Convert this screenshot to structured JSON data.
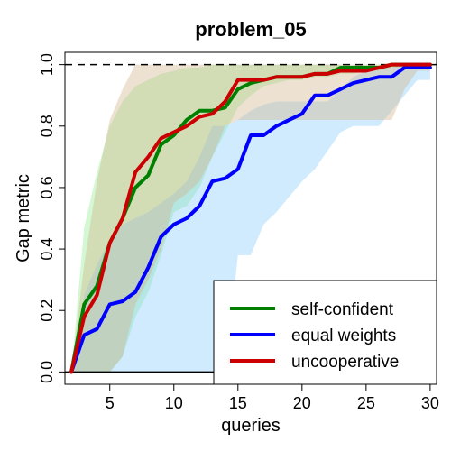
{
  "chart_data": {
    "type": "line",
    "title": "problem_05",
    "xlabel": "queries",
    "ylabel": "Gap metric",
    "xlim": [
      1.5,
      30.5
    ],
    "ylim": [
      -0.04,
      1.04
    ],
    "xticks": [
      5,
      10,
      15,
      20,
      25,
      30
    ],
    "yticks": [
      0.0,
      0.2,
      0.4,
      0.6,
      0.8,
      1.0
    ],
    "ytick_labels": [
      "0.0",
      "0.2",
      "0.4",
      "0.6",
      "0.8",
      "1.0"
    ],
    "reference_lines": [
      {
        "y": 1.0,
        "style": "dashed",
        "color": "#000000"
      },
      {
        "y": 0.0,
        "style": "solid",
        "color": "#000000"
      }
    ],
    "legend": {
      "position": "bottom-right"
    },
    "x": [
      2,
      3,
      4,
      5,
      6,
      7,
      8,
      9,
      10,
      11,
      12,
      13,
      14,
      15,
      16,
      17,
      18,
      19,
      20,
      21,
      22,
      23,
      24,
      25,
      26,
      27,
      28,
      29,
      30
    ],
    "series": [
      {
        "name": "self-confident",
        "color": "#008000",
        "band_color": "#90ee90",
        "values": [
          0.0,
          0.22,
          0.28,
          0.42,
          0.5,
          0.6,
          0.64,
          0.74,
          0.77,
          0.82,
          0.85,
          0.85,
          0.86,
          0.92,
          0.94,
          0.95,
          0.96,
          0.96,
          0.96,
          0.97,
          0.97,
          0.99,
          0.99,
          0.99,
          0.99,
          1.0,
          1.0,
          1.0,
          1.0
        ],
        "lower": [
          0.0,
          0.0,
          0.0,
          0.0,
          0.05,
          0.18,
          0.26,
          0.38,
          0.52,
          0.54,
          0.6,
          0.7,
          0.78,
          0.86,
          0.9,
          0.93,
          0.94,
          0.95,
          0.95,
          0.96,
          0.96,
          0.97,
          0.97,
          0.98,
          0.98,
          0.99,
          0.99,
          0.99,
          0.99
        ],
        "upper": [
          0.0,
          0.47,
          0.65,
          0.8,
          0.88,
          0.93,
          0.95,
          0.97,
          0.98,
          0.99,
          0.99,
          1.0,
          1.0,
          1.0,
          1.0,
          1.0,
          1.0,
          1.0,
          1.0,
          1.0,
          1.0,
          1.0,
          1.0,
          1.0,
          1.0,
          1.0,
          1.0,
          1.0,
          1.0
        ]
      },
      {
        "name": "equal weights",
        "color": "#0000ff",
        "band_color": "#87cefa",
        "values": [
          0.0,
          0.12,
          0.14,
          0.22,
          0.23,
          0.26,
          0.34,
          0.44,
          0.48,
          0.5,
          0.54,
          0.62,
          0.63,
          0.66,
          0.77,
          0.77,
          0.8,
          0.82,
          0.84,
          0.9,
          0.9,
          0.92,
          0.94,
          0.95,
          0.96,
          0.96,
          0.99,
          0.99,
          0.99
        ],
        "lower": [
          0.0,
          0.0,
          0.0,
          0.0,
          0.0,
          0.0,
          0.0,
          0.0,
          0.0,
          0.0,
          0.0,
          0.0,
          0.0,
          0.38,
          0.38,
          0.48,
          0.52,
          0.57,
          0.62,
          0.66,
          0.72,
          0.78,
          0.8,
          0.8,
          0.8,
          0.85,
          0.9,
          0.95,
          0.95
        ],
        "upper": [
          0.0,
          0.25,
          0.35,
          0.43,
          0.48,
          0.5,
          0.52,
          0.55,
          0.58,
          0.62,
          0.7,
          0.8,
          0.8,
          0.82,
          0.85,
          0.87,
          0.88,
          0.88,
          0.88,
          0.88,
          0.88,
          0.92,
          0.96,
          0.98,
          0.99,
          0.99,
          1.0,
          1.0,
          1.0
        ]
      },
      {
        "name": "uncooperative",
        "color": "#cc0000",
        "band_color": "#d2b48c",
        "values": [
          0.0,
          0.18,
          0.25,
          0.42,
          0.5,
          0.65,
          0.7,
          0.76,
          0.78,
          0.8,
          0.83,
          0.84,
          0.88,
          0.95,
          0.95,
          0.95,
          0.96,
          0.96,
          0.96,
          0.97,
          0.97,
          0.98,
          0.98,
          0.98,
          0.99,
          1.0,
          1.0,
          1.0,
          1.0
        ],
        "lower": [
          0.0,
          0.0,
          0.0,
          0.0,
          0.05,
          0.22,
          0.3,
          0.4,
          0.55,
          0.58,
          0.62,
          0.7,
          0.8,
          0.82,
          0.82,
          0.82,
          0.82,
          0.82,
          0.82,
          0.82,
          0.82,
          0.82,
          0.82,
          0.82,
          0.82,
          0.82,
          0.92,
          0.98,
          0.98
        ],
        "upper": [
          0.0,
          0.35,
          0.62,
          0.82,
          0.92,
          1.0,
          1.0,
          1.0,
          1.0,
          1.0,
          1.0,
          1.0,
          1.0,
          1.0,
          1.0,
          1.0,
          1.0,
          1.0,
          1.0,
          1.0,
          1.0,
          1.0,
          1.0,
          1.0,
          1.0,
          1.0,
          1.0,
          1.0,
          1.0
        ]
      }
    ]
  }
}
